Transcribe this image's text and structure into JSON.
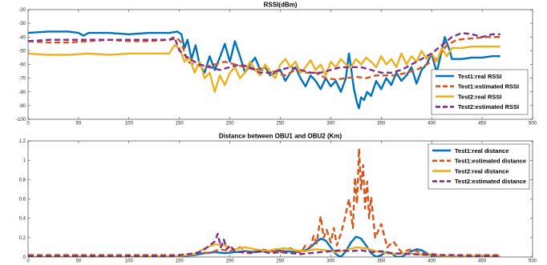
{
  "chart_data": [
    {
      "type": "line",
      "title": "RSSI(dBm)",
      "xlabel": "",
      "ylabel": "",
      "xlim": [
        0,
        500
      ],
      "ylim": [
        -100,
        -20
      ],
      "xticks": [
        0,
        50,
        100,
        150,
        200,
        250,
        300,
        350,
        400,
        450,
        500
      ],
      "yticks": [
        -100,
        -90,
        -80,
        -70,
        -60,
        -50,
        -40,
        -30,
        -20
      ],
      "grid": false,
      "legend_position": "bottom-right",
      "series": [
        {
          "name": "Test1:real RSSI",
          "color": "#0072BD",
          "dash": "solid",
          "x": [
            0,
            20,
            40,
            50,
            55,
            60,
            80,
            100,
            120,
            140,
            148,
            152,
            155,
            158,
            162,
            166,
            170,
            175,
            180,
            185,
            190,
            195,
            200,
            205,
            210,
            215,
            220,
            225,
            230,
            235,
            240,
            245,
            250,
            255,
            260,
            265,
            270,
            275,
            280,
            285,
            290,
            295,
            300,
            305,
            310,
            315,
            318,
            320,
            323,
            326,
            328,
            330,
            333,
            336,
            340,
            345,
            350,
            355,
            360,
            365,
            370,
            375,
            380,
            385,
            390,
            395,
            400,
            405,
            410,
            413,
            416,
            418,
            420,
            430,
            440,
            450,
            460,
            468
          ],
          "values": [
            -37,
            -36,
            -36,
            -37,
            -39,
            -37,
            -37,
            -38,
            -37,
            -37,
            -36,
            -38,
            -48,
            -42,
            -56,
            -46,
            -60,
            -66,
            -54,
            -64,
            -55,
            -45,
            -58,
            -43,
            -54,
            -66,
            -60,
            -55,
            -64,
            -62,
            -68,
            -66,
            -64,
            -72,
            -66,
            -62,
            -70,
            -76,
            -68,
            -72,
            -78,
            -70,
            -76,
            -72,
            -80,
            -70,
            -52,
            -62,
            -78,
            -88,
            -92,
            -84,
            -86,
            -80,
            -83,
            -72,
            -78,
            -70,
            -75,
            -66,
            -72,
            -68,
            -62,
            -74,
            -64,
            -60,
            -52,
            -66,
            -50,
            -40,
            -46,
            -50,
            -56,
            -56,
            -55,
            -55,
            -54,
            -54
          ]
        },
        {
          "name": "Test1:estimated RSSI",
          "color": "#D95319",
          "dash": "dashed",
          "x": [
            0,
            20,
            40,
            60,
            80,
            100,
            120,
            140,
            148,
            152,
            158,
            165,
            175,
            185,
            195,
            205,
            215,
            225,
            235,
            245,
            255,
            265,
            275,
            285,
            295,
            305,
            315,
            325,
            335,
            345,
            355,
            365,
            375,
            385,
            395,
            405,
            415,
            425,
            440,
            455,
            468
          ],
          "values": [
            -43,
            -44,
            -44,
            -43,
            -42,
            -43,
            -43,
            -42,
            -41,
            -44,
            -58,
            -60,
            -62,
            -60,
            -58,
            -60,
            -62,
            -64,
            -62,
            -66,
            -68,
            -64,
            -66,
            -66,
            -70,
            -71,
            -70,
            -69,
            -70,
            -68,
            -68,
            -68,
            -66,
            -64,
            -60,
            -56,
            -46,
            -42,
            -41,
            -40,
            -40
          ]
        },
        {
          "name": "Test2:real RSSI",
          "color": "#EDB120",
          "dash": "solid",
          "x": [
            0,
            20,
            40,
            60,
            80,
            100,
            120,
            140,
            145,
            150,
            155,
            160,
            165,
            170,
            175,
            180,
            185,
            190,
            195,
            200,
            205,
            210,
            215,
            220,
            225,
            230,
            235,
            240,
            245,
            250,
            255,
            260,
            265,
            270,
            275,
            280,
            285,
            290,
            295,
            300,
            305,
            310,
            315,
            320,
            325,
            330,
            335,
            340,
            345,
            350,
            355,
            360,
            365,
            370,
            375,
            380,
            385,
            390,
            395,
            400,
            405,
            410,
            415,
            420,
            430,
            440,
            450,
            460,
            468
          ],
          "values": [
            -52,
            -53,
            -53,
            -52,
            -53,
            -52,
            -52,
            -52,
            -46,
            -48,
            -58,
            -55,
            -66,
            -58,
            -70,
            -66,
            -80,
            -68,
            -75,
            -66,
            -62,
            -70,
            -66,
            -58,
            -64,
            -68,
            -60,
            -66,
            -70,
            -60,
            -56,
            -62,
            -58,
            -66,
            -62,
            -57,
            -64,
            -60,
            -68,
            -58,
            -62,
            -56,
            -60,
            -62,
            -56,
            -60,
            -55,
            -58,
            -62,
            -54,
            -60,
            -56,
            -62,
            -52,
            -60,
            -54,
            -58,
            -50,
            -56,
            -52,
            -58,
            -48,
            -54,
            -48,
            -48,
            -47,
            -47,
            -47,
            -47
          ]
        },
        {
          "name": "Test2:estimated RSSI",
          "color": "#7E2F8E",
          "dash": "dashed",
          "x": [
            0,
            20,
            40,
            60,
            80,
            100,
            120,
            140,
            145,
            150,
            160,
            170,
            180,
            190,
            200,
            210,
            220,
            230,
            240,
            250,
            260,
            270,
            280,
            290,
            300,
            310,
            320,
            330,
            340,
            350,
            360,
            370,
            380,
            390,
            400,
            410,
            420,
            430,
            440,
            450,
            460,
            468
          ],
          "values": [
            -43,
            -42,
            -42,
            -42,
            -42,
            -42,
            -42,
            -42,
            -40,
            -50,
            -56,
            -60,
            -62,
            -64,
            -62,
            -60,
            -62,
            -66,
            -66,
            -64,
            -62,
            -64,
            -66,
            -66,
            -64,
            -62,
            -62,
            -62,
            -64,
            -66,
            -66,
            -64,
            -60,
            -56,
            -52,
            -46,
            -40,
            -37,
            -38,
            -40,
            -38,
            -38
          ]
        }
      ]
    },
    {
      "type": "line",
      "title": "Distance between OBU1 and OBU2 (Km)",
      "xlabel": "",
      "ylabel": "",
      "xlim": [
        0,
        500
      ],
      "ylim": [
        0,
        1.2
      ],
      "xticks": [
        0,
        50,
        100,
        150,
        200,
        250,
        300,
        350,
        400,
        450,
        500
      ],
      "yticks": [
        0,
        0.2,
        0.4,
        0.6,
        0.8,
        1,
        1.2
      ],
      "ytick_labels": [
        "0",
        "0.2",
        "0.4",
        "0.6",
        "0.8",
        "1",
        "1.2"
      ],
      "grid": false,
      "legend_position": "top-right",
      "series": [
        {
          "name": "Test1:real distance",
          "color": "#0072BD",
          "dash": "solid",
          "x": [
            0,
            100,
            150,
            165,
            175,
            185,
            195,
            205,
            215,
            225,
            235,
            245,
            255,
            265,
            275,
            280,
            285,
            290,
            295,
            300,
            305,
            310,
            315,
            320,
            325,
            330,
            335,
            340,
            345,
            350,
            355,
            360,
            365,
            370,
            375,
            380,
            385,
            390,
            395,
            400,
            405,
            410,
            420,
            440,
            468
          ],
          "values": [
            0,
            0,
            0.005,
            0.02,
            0.04,
            0.05,
            0.04,
            0.05,
            0.06,
            0.05,
            0.06,
            0.07,
            0.06,
            0.05,
            0.07,
            0.1,
            0.15,
            0.19,
            0.17,
            0.1,
            0.03,
            0.0,
            0.06,
            0.15,
            0.21,
            0.19,
            0.12,
            0.04,
            0.0,
            0.02,
            0.05,
            0.04,
            0.0,
            0.0,
            0.03,
            0.06,
            0.08,
            0.07,
            0.04,
            0.01,
            0.0,
            0.0,
            0.0,
            0.0,
            0.0
          ]
        },
        {
          "name": "Test1:estimated distance",
          "color": "#D95319",
          "dash": "dashed",
          "x": [
            0,
            100,
            150,
            160,
            170,
            180,
            190,
            200,
            210,
            220,
            230,
            240,
            250,
            260,
            270,
            275,
            280,
            283,
            286,
            290,
            293,
            296,
            300,
            303,
            306,
            310,
            314,
            318,
            322,
            324,
            326,
            328,
            330,
            332,
            334,
            336,
            338,
            340,
            344,
            350,
            356,
            362,
            370,
            380,
            390,
            400,
            410,
            420,
            440,
            468
          ],
          "values": [
            0.02,
            0.02,
            0.02,
            0.03,
            0.05,
            0.04,
            0.08,
            0.06,
            0.1,
            0.04,
            0.08,
            0.06,
            0.05,
            0.09,
            0.04,
            0.12,
            0.1,
            0.22,
            0.14,
            0.42,
            0.2,
            0.28,
            0.15,
            0.3,
            0.12,
            0.24,
            0.4,
            0.6,
            0.3,
            0.82,
            0.55,
            1.12,
            0.7,
            0.95,
            0.5,
            0.78,
            0.4,
            0.62,
            0.2,
            0.34,
            0.1,
            0.16,
            0.05,
            0.08,
            0.04,
            0.03,
            0.02,
            0.02,
            0.02,
            0.02
          ]
        },
        {
          "name": "Test2:real distance",
          "color": "#EDB120",
          "dash": "solid",
          "x": [
            0,
            100,
            150,
            165,
            175,
            185,
            195,
            205,
            215,
            225,
            235,
            245,
            255,
            265,
            275,
            285,
            295,
            305,
            315,
            325,
            335,
            345,
            355,
            365,
            375,
            385,
            395,
            405,
            415,
            425,
            440,
            455,
            468
          ],
          "values": [
            0.005,
            0.005,
            0.01,
            0.03,
            0.09,
            0.13,
            0.12,
            0.08,
            0.1,
            0.08,
            0.06,
            0.08,
            0.09,
            0.07,
            0.06,
            0.08,
            0.07,
            0.05,
            0.07,
            0.1,
            0.09,
            0.06,
            0.04,
            0.03,
            0.04,
            0.03,
            0.02,
            0.015,
            0.01,
            0.01,
            0.01,
            0.01,
            0.01
          ]
        },
        {
          "name": "Test2:estimated distance",
          "color": "#7E2F8E",
          "dash": "dashed",
          "x": [
            0,
            100,
            140,
            150,
            160,
            170,
            175,
            180,
            185,
            188,
            191,
            194,
            197,
            200,
            205,
            210,
            220,
            230,
            240,
            250,
            260,
            270,
            280,
            290,
            300,
            310,
            320,
            330,
            340,
            350,
            360,
            380,
            400,
            420,
            440,
            468
          ],
          "values": [
            0.01,
            0.01,
            0.01,
            0.02,
            0.03,
            0.05,
            0.08,
            0.12,
            0.16,
            0.24,
            0.1,
            0.18,
            0.08,
            0.12,
            0.06,
            0.05,
            0.04,
            0.06,
            0.04,
            0.05,
            0.04,
            0.03,
            0.04,
            0.05,
            0.06,
            0.07,
            0.06,
            0.07,
            0.05,
            0.06,
            0.04,
            0.03,
            0.02,
            0.02,
            0.01,
            0.01
          ]
        }
      ]
    }
  ]
}
